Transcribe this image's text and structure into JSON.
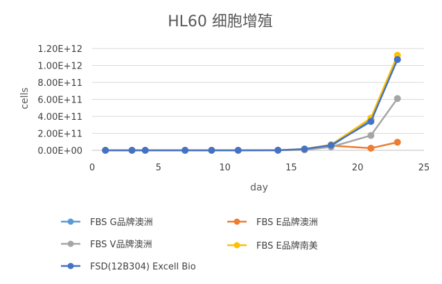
{
  "chart_data": {
    "type": "line",
    "title": "HL60 细胞增殖",
    "xlabel": "day",
    "ylabel": "cells",
    "xlim": [
      0,
      25
    ],
    "ylim": [
      0,
      1200000000000.0
    ],
    "x_ticks": [
      "0",
      "5",
      "10",
      "15",
      "20",
      "25"
    ],
    "y_ticks": [
      "0.00E+00",
      "2.00E+11",
      "4.00E+11",
      "6.00E+11",
      "8.00E+11",
      "1.00E+12",
      "1.20E+12"
    ],
    "grid": "horizontal",
    "legend_position": "bottom",
    "series": [
      {
        "name": "FBS  G品牌澳洲",
        "color": "#5B9BD5",
        "points": [
          [
            1,
            0
          ],
          [
            3,
            0
          ],
          [
            4,
            0
          ],
          [
            7,
            0
          ],
          [
            9,
            0
          ],
          [
            11,
            0
          ],
          [
            14,
            1000000000.0
          ],
          [
            16,
            10000000000.0
          ],
          [
            18,
            50000000000.0
          ],
          [
            21,
            360000000000.0
          ],
          [
            23,
            1070000000000.0
          ]
        ]
      },
      {
        "name": "FBS  E品牌澳洲",
        "color": "#ED7D31",
        "points": [
          [
            1,
            0
          ],
          [
            3,
            0
          ],
          [
            4,
            0
          ],
          [
            7,
            0
          ],
          [
            9,
            0
          ],
          [
            11,
            0
          ],
          [
            14,
            1000000000.0
          ],
          [
            16,
            10000000000.0
          ],
          [
            18,
            55000000000.0
          ],
          [
            21,
            25000000000.0
          ],
          [
            23,
            95000000000.0
          ]
        ]
      },
      {
        "name": "FBS  V品牌澳洲",
        "color": "#A5A5A5",
        "points": [
          [
            1,
            0
          ],
          [
            3,
            0
          ],
          [
            4,
            0
          ],
          [
            7,
            0
          ],
          [
            9,
            0
          ],
          [
            11,
            0
          ],
          [
            14,
            1000000000.0
          ],
          [
            16,
            5000000000.0
          ],
          [
            18,
            40000000000.0
          ],
          [
            21,
            175000000000.0
          ],
          [
            23,
            610000000000.0
          ]
        ]
      },
      {
        "name": "FBS  E品牌南美",
        "color": "#FFC000",
        "points": [
          [
            1,
            0
          ],
          [
            3,
            0
          ],
          [
            4,
            0
          ],
          [
            7,
            0
          ],
          [
            9,
            0
          ],
          [
            11,
            0
          ],
          [
            14,
            1000000000.0
          ],
          [
            16,
            15000000000.0
          ],
          [
            18,
            65000000000.0
          ],
          [
            21,
            380000000000.0
          ],
          [
            23,
            1120000000000.0
          ]
        ]
      },
      {
        "name": "FSD(12B304) Excell Bio",
        "color": "#4472C4",
        "points": [
          [
            1,
            0
          ],
          [
            3,
            0
          ],
          [
            4,
            0
          ],
          [
            7,
            0
          ],
          [
            9,
            0
          ],
          [
            11,
            0
          ],
          [
            14,
            1000000000.0
          ],
          [
            16,
            15000000000.0
          ],
          [
            18,
            60000000000.0
          ],
          [
            21,
            340000000000.0
          ],
          [
            23,
            1070000000000.0
          ]
        ]
      }
    ]
  }
}
